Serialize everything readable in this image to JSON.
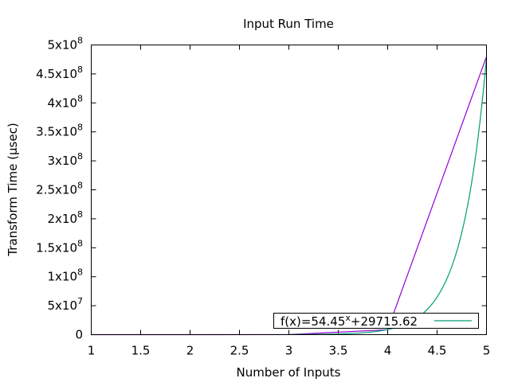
{
  "chart_data": {
    "type": "line",
    "title": "Input Run Time",
    "xlabel": "Number of Inputs",
    "ylabel": "Transform Time (µsec)",
    "xlim": [
      1,
      5
    ],
    "ylim": [
      0,
      500000000
    ],
    "xticks": [
      "1",
      "1.5",
      "2",
      "2.5",
      "3",
      "3.5",
      "4",
      "4.5",
      "5"
    ],
    "yticks": [
      {
        "base": "0",
        "exp": ""
      },
      {
        "base": "5x10",
        "exp": "7"
      },
      {
        "base": "1x10",
        "exp": "8"
      },
      {
        "base": "1.5x10",
        "exp": "8"
      },
      {
        "base": "2x10",
        "exp": "8"
      },
      {
        "base": "2.5x10",
        "exp": "8"
      },
      {
        "base": "3x10",
        "exp": "8"
      },
      {
        "base": "3.5x10",
        "exp": "8"
      },
      {
        "base": "4x10",
        "exp": "8"
      },
      {
        "base": "4.5x10",
        "exp": "8"
      },
      {
        "base": "5x10",
        "exp": "8"
      }
    ],
    "grid": false,
    "legend_position": "bottom-right",
    "series": [
      {
        "color": "#9400d3",
        "x": [
          1,
          2,
          3,
          4,
          5
        ],
        "y": [
          60,
          1500,
          150000,
          8500000,
          480000000
        ]
      },
      {
        "legend": {
          "prefix": "f(x)=54.45",
          "sup": "x",
          "suffix": "+29715.62"
        },
        "color": "#009e73",
        "function": {
          "base": 54.45,
          "offset": 29715.62
        }
      }
    ]
  }
}
